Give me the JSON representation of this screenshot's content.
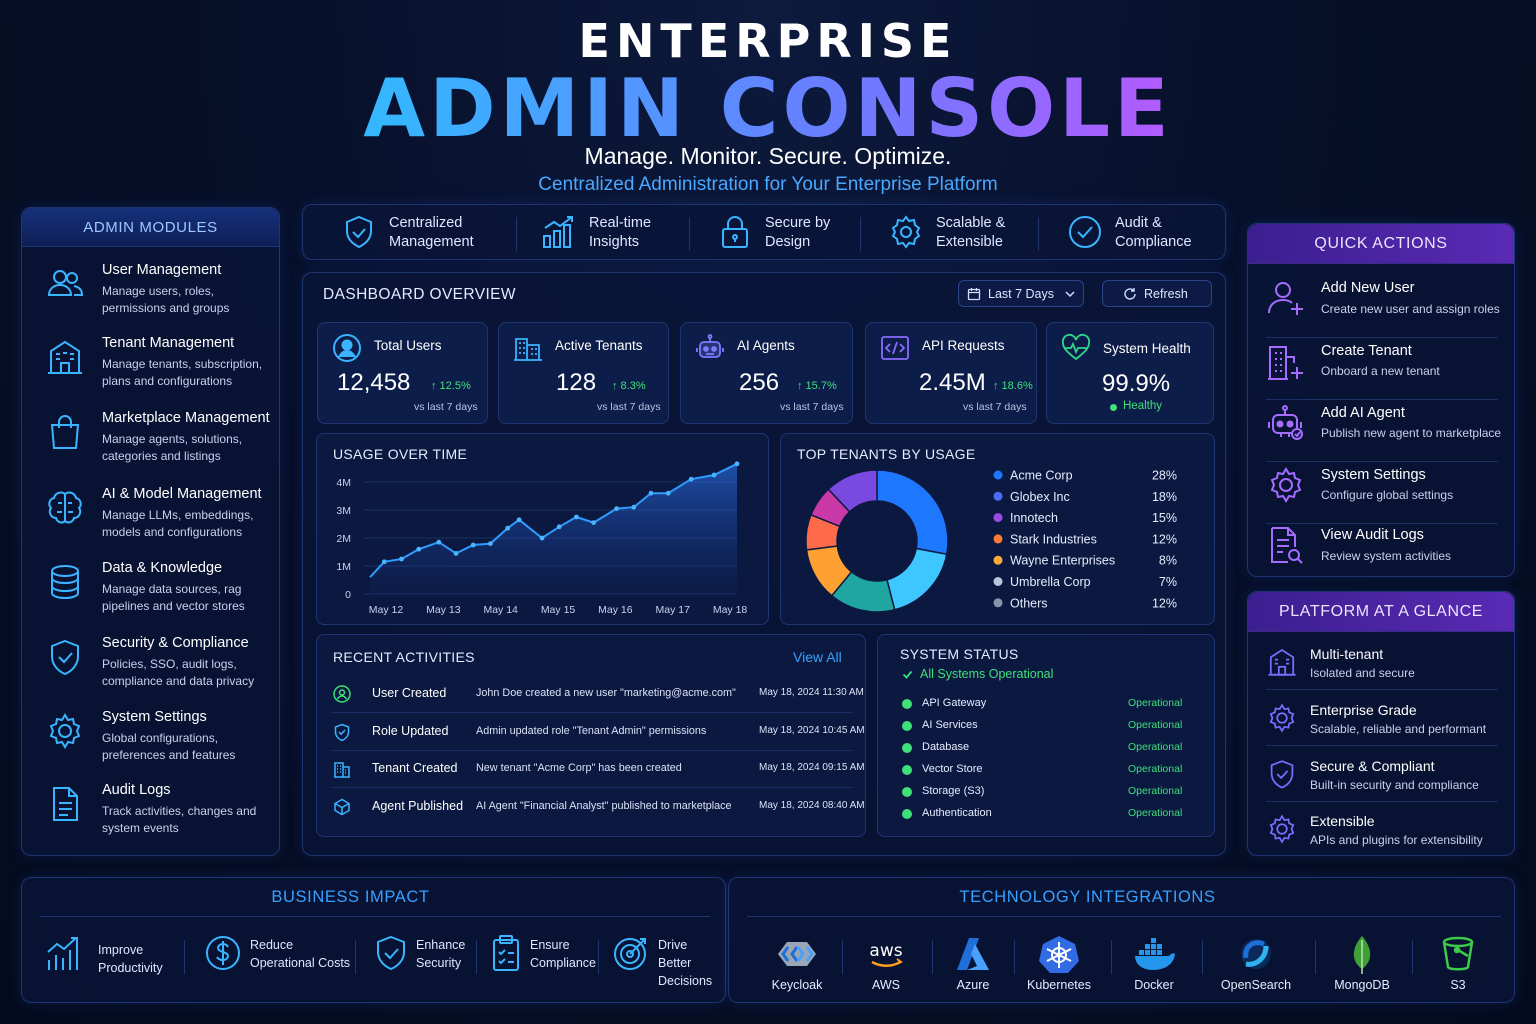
{
  "header": {
    "top": "ENTERPRISE",
    "main": "ADMIN CONSOLE",
    "sub": "Manage. Monitor. Secure. Optimize.",
    "tagline": "Centralized Administration for Your Enterprise Platform"
  },
  "modules": {
    "title": "ADMIN MODULES",
    "items": [
      {
        "title": "User Management",
        "desc": "Manage users, roles, permissions and groups",
        "icon": "users-icon"
      },
      {
        "title": "Tenant Management",
        "desc": "Manage tenants, subscription, plans and configurations",
        "icon": "building-icon"
      },
      {
        "title": "Marketplace Management",
        "desc": "Manage agents, solutions, categories and listings",
        "icon": "shopping-bag-icon"
      },
      {
        "title": "AI & Model Management",
        "desc": "Manage LLMs, embeddings, models and configurations",
        "icon": "brain-icon"
      },
      {
        "title": "Data & Knowledge",
        "desc": "Manage data sources, rag pipelines and vector stores",
        "icon": "database-icon"
      },
      {
        "title": "Security & Compliance",
        "desc": "Policies, SSO, audit logs, compliance and data privacy",
        "icon": "shield-check-icon"
      },
      {
        "title": "System Settings",
        "desc": "Global configurations, preferences and features",
        "icon": "gear-icon"
      },
      {
        "title": "Audit Logs",
        "desc": "Track activities, changes and system events",
        "icon": "document-icon"
      }
    ]
  },
  "features": [
    {
      "label": "Centralized Management",
      "icon": "shield-check-icon"
    },
    {
      "label": "Real-time Insights",
      "icon": "bar-chart-icon"
    },
    {
      "label": "Secure by Design",
      "icon": "lock-icon"
    },
    {
      "label": "Scalable & Extensible",
      "icon": "gear-icon"
    },
    {
      "label": "Audit & Compliance",
      "icon": "check-circle-icon"
    }
  ],
  "dashboard": {
    "title": "DASHBOARD OVERVIEW",
    "range_label": "Last 7 Days",
    "refresh_label": "Refresh",
    "kpis": [
      {
        "label": "Total Users",
        "value": "12,458",
        "change": "↑ 12.5%",
        "vs": "vs last 7 days",
        "icon": "user-circle-icon"
      },
      {
        "label": "Active Tenants",
        "value": "128",
        "change": "↑ 8.3%",
        "vs": "vs last 7 days",
        "icon": "building-icon"
      },
      {
        "label": "AI Agents",
        "value": "256",
        "change": "↑ 15.7%",
        "vs": "vs last 7 days",
        "icon": "robot-icon"
      },
      {
        "label": "API Requests",
        "value": "2.45M",
        "change": "↑ 18.6%",
        "vs": "vs last 7 days",
        "icon": "code-icon"
      },
      {
        "label": "System Health",
        "value": "99.9%",
        "status": "Healthy",
        "icon": "heart-pulse-icon"
      }
    ],
    "usage_title": "USAGE OVER TIME",
    "tenants_title": "TOP TENANTS BY USAGE",
    "activities": {
      "title": "RECENT ACTIVITIES",
      "view_all": "View All",
      "rows": [
        {
          "type": "User Created",
          "desc": "John Doe created a new user \"marketing@acme.com\"",
          "time": "May 18, 2024 11:30 AM",
          "icon": "user-circle-icon"
        },
        {
          "type": "Role Updated",
          "desc": "Admin updated role \"Tenant Admin\" permissions",
          "time": "May 18, 2024 10:45 AM",
          "icon": "shield-check-icon"
        },
        {
          "type": "Tenant Created",
          "desc": "New tenant \"Acme Corp\" has been created",
          "time": "May 18, 2024 09:15 AM",
          "icon": "building-icon"
        },
        {
          "type": "Agent Published",
          "desc": "AI Agent \"Financial Analyst\" published to marketplace",
          "time": "May 18, 2024 08:40 AM",
          "icon": "cube-icon"
        }
      ]
    },
    "system_status": {
      "title": "SYSTEM STATUS",
      "summary": "All Systems Operational",
      "rows": [
        {
          "name": "API Gateway",
          "status": "Operational"
        },
        {
          "name": "AI Services",
          "status": "Operational"
        },
        {
          "name": "Database",
          "status": "Operational"
        },
        {
          "name": "Vector Store",
          "status": "Operational"
        },
        {
          "name": "Storage (S3)",
          "status": "Operational"
        },
        {
          "name": "Authentication",
          "status": "Operational"
        }
      ]
    }
  },
  "chart_data": [
    {
      "type": "area",
      "title": "USAGE OVER TIME",
      "x": [
        "May 12",
        "May 13",
        "May 14",
        "May 15",
        "May 16",
        "May 17",
        "May 18"
      ],
      "y_ticks": [
        "0",
        "1M",
        "2M",
        "3M",
        "4M"
      ],
      "ylim": [
        0,
        4000000
      ],
      "points": [
        [
          0,
          600000
        ],
        [
          0.25,
          1150000
        ],
        [
          0.55,
          1250000
        ],
        [
          0.85,
          1600000
        ],
        [
          1.2,
          1850000
        ],
        [
          1.5,
          1450000
        ],
        [
          1.8,
          1750000
        ],
        [
          2.1,
          1800000
        ],
        [
          2.4,
          2350000
        ],
        [
          2.6,
          2650000
        ],
        [
          3.0,
          2000000
        ],
        [
          3.3,
          2400000
        ],
        [
          3.6,
          2750000
        ],
        [
          3.9,
          2550000
        ],
        [
          4.3,
          3050000
        ],
        [
          4.6,
          3100000
        ],
        [
          4.9,
          3600000
        ],
        [
          5.2,
          3600000
        ],
        [
          5.6,
          4100000
        ],
        [
          6.0,
          4250000
        ],
        [
          6.4,
          4650000
        ]
      ],
      "grid": true,
      "color": "#2f9bff"
    },
    {
      "type": "pie",
      "title": "TOP TENANTS BY USAGE",
      "labels": [
        "Acme Corp",
        "Globex Inc",
        "Innotech",
        "Stark Industries",
        "Wayne Enterprises",
        "Umbrella Corp",
        "Others"
      ],
      "values": [
        28,
        18,
        15,
        12,
        8,
        7,
        12
      ],
      "display": [
        "28%",
        "18%",
        "15%",
        "12%",
        "8%",
        "7%",
        "12%"
      ],
      "colors": [
        "#1e78ff",
        "#3ec6ff",
        "#1fa6a0",
        "#ffa033",
        "#ff6a4a",
        "#c93aa8",
        "#7a4ae0"
      ],
      "legend_colors": [
        "#1e78ff",
        "#4a6cf2",
        "#9b4ae8",
        "#ff7a3a",
        "#ffa83a",
        "#b9c3da",
        "#8a94aa"
      ]
    }
  ],
  "quick_actions": {
    "title": "QUICK ACTIONS",
    "items": [
      {
        "title": "Add New User",
        "desc": "Create new user and assign roles",
        "icon": "add-user-icon"
      },
      {
        "title": "Create Tenant",
        "desc": "Onboard a new tenant",
        "icon": "add-building-icon"
      },
      {
        "title": "Add AI Agent",
        "desc": "Publish new agent to marketplace",
        "icon": "robot-icon"
      },
      {
        "title": "System Settings",
        "desc": "Configure global settings",
        "icon": "gear-icon"
      },
      {
        "title": "View Audit Logs",
        "desc": "Review system activities",
        "icon": "document-search-icon"
      }
    ]
  },
  "platform": {
    "title": "PLATFORM AT A GLANCE",
    "items": [
      {
        "title": "Multi-tenant",
        "desc": "Isolated and secure",
        "icon": "building-icon"
      },
      {
        "title": "Enterprise Grade",
        "desc": "Scalable, reliable and performant",
        "icon": "gear-icon"
      },
      {
        "title": "Secure & Compliant",
        "desc": "Built-in security and compliance",
        "icon": "shield-check-icon"
      },
      {
        "title": "Extensible",
        "desc": "APIs and plugins for extensibility",
        "icon": "gear-icon"
      }
    ]
  },
  "business": {
    "title": "BUSINESS IMPACT",
    "items": [
      {
        "label": "Improve Productivity",
        "icon": "trend-up-icon"
      },
      {
        "label": "Reduce Operational Costs",
        "icon": "dollar-icon"
      },
      {
        "label": "Enhance Security",
        "icon": "shield-check-icon"
      },
      {
        "label": "Ensure Compliance",
        "icon": "clipboard-check-icon"
      },
      {
        "label": "Drive Better Decisions",
        "icon": "target-icon"
      }
    ]
  },
  "tech": {
    "title": "TECHNOLOGY INTEGRATIONS",
    "items": [
      {
        "label": "Keycloak",
        "icon": "keycloak-icon"
      },
      {
        "label": "AWS",
        "icon": "aws-icon"
      },
      {
        "label": "Azure",
        "icon": "azure-icon"
      },
      {
        "label": "Kubernetes",
        "icon": "kubernetes-icon"
      },
      {
        "label": "Docker",
        "icon": "docker-icon"
      },
      {
        "label": "OpenSearch",
        "icon": "opensearch-icon"
      },
      {
        "label": "MongoDB",
        "icon": "mongodb-icon"
      },
      {
        "label": "S3",
        "icon": "s3-icon"
      }
    ]
  },
  "colors": {
    "accent": "#2f9bff",
    "purple": "#8a5cff",
    "success": "#3ee07a",
    "background": "#07102a"
  }
}
